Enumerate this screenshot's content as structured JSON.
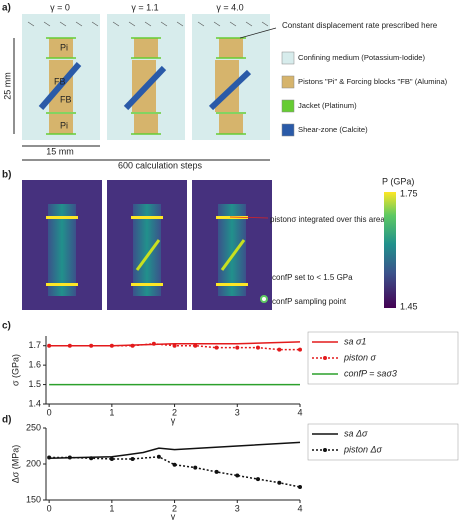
{
  "panel_a": {
    "label": "a)",
    "columns": [
      "γ = 0",
      "γ = 1.1",
      "γ = 4.0"
    ],
    "height_label": "25 mm",
    "width_label": "15 mm",
    "steps_label": "600 calculation steps",
    "block_labels": [
      "Pi",
      "FB",
      "FB",
      "Pi"
    ],
    "annotation": "Constant displacement rate prescribed here",
    "legend": [
      "Confining medium (Potassium-Iodide)",
      "Pistons \"Pi\" & Forcing blocks \"FB\" (Alumina)",
      "Jacket (Platinum)",
      "Shear-zone (Calcite)"
    ],
    "legend_colors": [
      "#d7ecec",
      "#d6b46c",
      "#66cc33",
      "#2a5aa8"
    ]
  },
  "panel_b": {
    "label": "b)",
    "colorbar_title": "P (GPa)",
    "colorbar_max": 1.75,
    "colorbar_min": 1.45,
    "annotations": [
      "pistonσ integrated over this area",
      "confP set to < 1.5 GPa",
      "confP sampling point"
    ]
  },
  "chart_data": [
    {
      "type": "line",
      "label": "c)",
      "xlabel": "γ",
      "ylabel": "σ (GPa)",
      "xlim": [
        -0.05,
        4
      ],
      "xticks": [
        0,
        1,
        2,
        3,
        4
      ],
      "ylim": [
        1.4,
        1.75
      ],
      "yticks": [
        1.4,
        1.5,
        1.6,
        1.7
      ],
      "series": [
        {
          "name": "sa σ1",
          "color": "#e31a1c",
          "style": "solid",
          "markers": false,
          "x": [
            0,
            1,
            2,
            3,
            4
          ],
          "values": [
            1.7,
            1.7,
            1.71,
            1.71,
            1.72
          ]
        },
        {
          "name": "piston σ",
          "color": "#e31a1c",
          "style": "dotted",
          "markers": true,
          "x": [
            0,
            0.33,
            0.67,
            1,
            1.33,
            1.67,
            2,
            2.33,
            2.67,
            3,
            3.33,
            3.67,
            4
          ],
          "values": [
            1.7,
            1.7,
            1.7,
            1.7,
            1.7,
            1.71,
            1.7,
            1.7,
            1.69,
            1.69,
            1.69,
            1.68,
            1.68
          ]
        },
        {
          "name": "confP = saσ3",
          "color": "#2ca02c",
          "style": "solid",
          "markers": false,
          "x": [
            0,
            4
          ],
          "values": [
            1.5,
            1.5
          ]
        }
      ]
    },
    {
      "type": "line",
      "label": "d)",
      "xlabel": "γ",
      "ylabel": "Δσ (MPa)",
      "xlim": [
        -0.05,
        4
      ],
      "xticks": [
        0,
        1,
        2,
        3,
        4
      ],
      "ylim": [
        150,
        250
      ],
      "yticks": [
        150,
        200,
        250
      ],
      "series": [
        {
          "name": "sa Δσ",
          "color": "#111111",
          "style": "solid",
          "markers": false,
          "x": [
            0,
            1,
            1.5,
            1.75,
            2,
            3,
            4
          ],
          "values": [
            208,
            210,
            216,
            222,
            220,
            225,
            230
          ]
        },
        {
          "name": "piston Δσ",
          "color": "#111111",
          "style": "dotted",
          "markers": true,
          "x": [
            0,
            0.33,
            0.67,
            1,
            1.33,
            1.75,
            2,
            2.33,
            2.67,
            3,
            3.33,
            3.67,
            4
          ],
          "values": [
            209,
            209,
            208,
            207,
            207,
            210,
            199,
            195,
            189,
            184,
            179,
            174,
            168
          ]
        }
      ]
    }
  ]
}
